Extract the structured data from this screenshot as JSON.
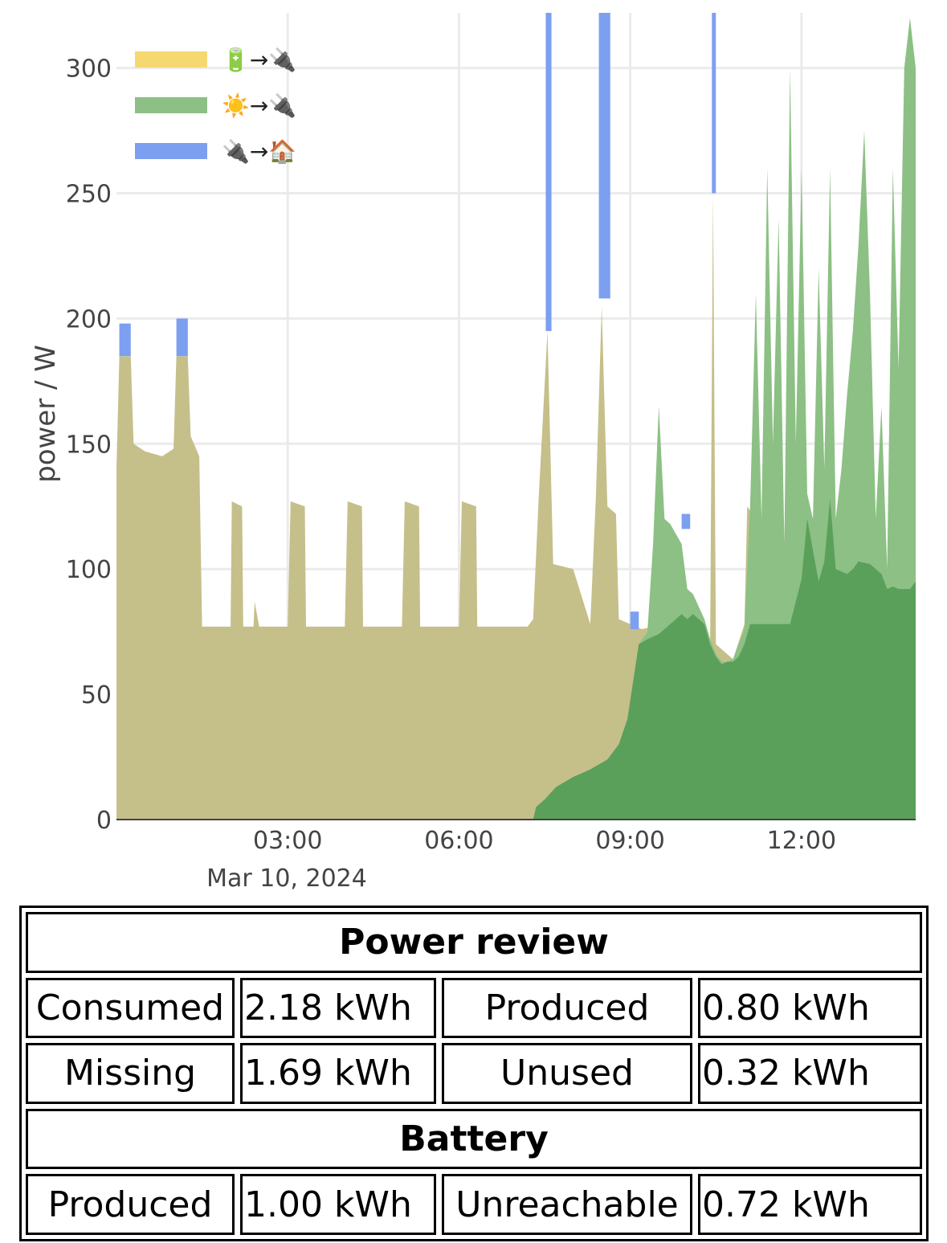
{
  "chart_data": {
    "type": "area",
    "xlabel": "",
    "ylabel": "power / W",
    "x_ticks": [
      "03:00",
      "06:00",
      "09:00",
      "12:00"
    ],
    "x_date_label": "Mar 10, 2024",
    "ylim": [
      0,
      322
    ],
    "y_ticks": [
      0,
      50,
      100,
      150,
      200,
      250,
      300
    ],
    "grid": true,
    "legend_position": "top-left",
    "x_unit": "hours since 00:00 on Mar 10, 2024",
    "series": [
      {
        "name": "☀️→🔌",
        "color": "#5aa05a",
        "points": [
          [
            0.0,
            0
          ],
          [
            7.3,
            0
          ],
          [
            7.35,
            5
          ],
          [
            7.5,
            8
          ],
          [
            7.7,
            13
          ],
          [
            8.0,
            17
          ],
          [
            8.3,
            20
          ],
          [
            8.6,
            24
          ],
          [
            8.8,
            30
          ],
          [
            8.95,
            40
          ],
          [
            9.05,
            55
          ],
          [
            9.15,
            70
          ],
          [
            9.3,
            72
          ],
          [
            9.5,
            74
          ],
          [
            9.6,
            76
          ],
          [
            9.8,
            80
          ],
          [
            9.9,
            82
          ],
          [
            10.0,
            80
          ],
          [
            10.1,
            82
          ],
          [
            10.3,
            78
          ],
          [
            10.4,
            70
          ],
          [
            10.5,
            65
          ],
          [
            10.6,
            62
          ],
          [
            10.7,
            63
          ],
          [
            10.8,
            63
          ],
          [
            10.9,
            65
          ],
          [
            11.0,
            70
          ],
          [
            11.1,
            78
          ],
          [
            11.2,
            78
          ],
          [
            11.5,
            78
          ],
          [
            11.8,
            78
          ],
          [
            12.0,
            96
          ],
          [
            12.1,
            120
          ],
          [
            12.3,
            95
          ],
          [
            12.4,
            103
          ],
          [
            12.5,
            128
          ],
          [
            12.6,
            100
          ],
          [
            12.8,
            98
          ],
          [
            12.9,
            100
          ],
          [
            13.0,
            103
          ],
          [
            13.2,
            102
          ],
          [
            13.3,
            100
          ],
          [
            13.4,
            98
          ],
          [
            13.5,
            92
          ],
          [
            13.6,
            93
          ],
          [
            13.7,
            92
          ],
          [
            13.8,
            92
          ],
          [
            13.9,
            92
          ],
          [
            14.0,
            95
          ]
        ]
      },
      {
        "name": "☀️→🔌",
        "color": "#8cc084",
        "points": [
          [
            0.0,
            0
          ],
          [
            7.3,
            0
          ],
          [
            7.35,
            5
          ],
          [
            7.5,
            8
          ],
          [
            7.7,
            13
          ],
          [
            8.0,
            17
          ],
          [
            8.3,
            20
          ],
          [
            8.6,
            24
          ],
          [
            8.8,
            30
          ],
          [
            8.95,
            40
          ],
          [
            9.05,
            55
          ],
          [
            9.15,
            70
          ],
          [
            9.3,
            75
          ],
          [
            9.4,
            110
          ],
          [
            9.5,
            165
          ],
          [
            9.6,
            120
          ],
          [
            9.7,
            118
          ],
          [
            9.8,
            114
          ],
          [
            9.9,
            110
          ],
          [
            10.0,
            92
          ],
          [
            10.1,
            90
          ],
          [
            10.3,
            80
          ],
          [
            10.4,
            72
          ],
          [
            10.5,
            66
          ],
          [
            10.6,
            63
          ],
          [
            10.7,
            63
          ],
          [
            10.8,
            64
          ],
          [
            10.9,
            70
          ],
          [
            11.0,
            76
          ],
          [
            11.1,
            125
          ],
          [
            11.2,
            210
          ],
          [
            11.3,
            120
          ],
          [
            11.4,
            260
          ],
          [
            11.5,
            150
          ],
          [
            11.6,
            240
          ],
          [
            11.7,
            110
          ],
          [
            11.8,
            300
          ],
          [
            11.9,
            150
          ],
          [
            12.0,
            260
          ],
          [
            12.1,
            130
          ],
          [
            12.2,
            120
          ],
          [
            12.3,
            220
          ],
          [
            12.4,
            140
          ],
          [
            12.5,
            260
          ],
          [
            12.6,
            120
          ],
          [
            12.7,
            140
          ],
          [
            12.8,
            170
          ],
          [
            12.9,
            195
          ],
          [
            13.0,
            230
          ],
          [
            13.1,
            275
          ],
          [
            13.2,
            210
          ],
          [
            13.3,
            120
          ],
          [
            13.4,
            165
          ],
          [
            13.5,
            100
          ],
          [
            13.6,
            260
          ],
          [
            13.7,
            180
          ],
          [
            13.8,
            300
          ],
          [
            13.9,
            320
          ],
          [
            14.0,
            300
          ]
        ]
      },
      {
        "name": "🔋→🔌",
        "color": "#c5bf8a",
        "points": [
          [
            0.0,
            140
          ],
          [
            0.05,
            185
          ],
          [
            0.25,
            185
          ],
          [
            0.3,
            150
          ],
          [
            0.5,
            147
          ],
          [
            0.8,
            145
          ],
          [
            1.0,
            148
          ],
          [
            1.05,
            185
          ],
          [
            1.25,
            185
          ],
          [
            1.3,
            153
          ],
          [
            1.45,
            145
          ],
          [
            1.5,
            77
          ],
          [
            2.0,
            77
          ],
          [
            2.02,
            127
          ],
          [
            2.2,
            125
          ],
          [
            2.22,
            77
          ],
          [
            2.4,
            77
          ],
          [
            2.42,
            87
          ],
          [
            2.5,
            77
          ],
          [
            3.0,
            77
          ],
          [
            3.05,
            127
          ],
          [
            3.3,
            125
          ],
          [
            3.32,
            77
          ],
          [
            4.0,
            77
          ],
          [
            4.05,
            127
          ],
          [
            4.3,
            125
          ],
          [
            4.32,
            77
          ],
          [
            5.0,
            77
          ],
          [
            5.05,
            127
          ],
          [
            5.3,
            125
          ],
          [
            5.32,
            77
          ],
          [
            6.0,
            77
          ],
          [
            6.05,
            127
          ],
          [
            6.3,
            125
          ],
          [
            6.32,
            77
          ],
          [
            7.2,
            77
          ],
          [
            7.3,
            80
          ],
          [
            7.4,
            130
          ],
          [
            7.55,
            195
          ],
          [
            7.65,
            102
          ],
          [
            8.0,
            100
          ],
          [
            8.3,
            78
          ],
          [
            8.4,
            130
          ],
          [
            8.5,
            205
          ],
          [
            8.6,
            125
          ],
          [
            8.75,
            122
          ],
          [
            8.8,
            80
          ],
          [
            9.0,
            78
          ],
          [
            9.2,
            76
          ],
          [
            10.0,
            80
          ],
          [
            10.3,
            76
          ],
          [
            10.4,
            70
          ],
          [
            10.45,
            250
          ],
          [
            10.5,
            70
          ],
          [
            10.8,
            64
          ],
          [
            11.0,
            78
          ],
          [
            11.05,
            125
          ],
          [
            11.2,
            120
          ],
          [
            11.3,
            80
          ],
          [
            14.0,
            80
          ]
        ]
      },
      {
        "name": "🔌→🏠",
        "color": "#7c9ff0",
        "points": [
          [
            0.05,
            198
          ],
          [
            0.25,
            198
          ],
          [
            1.05,
            200
          ],
          [
            1.25,
            200
          ],
          [
            7.5,
            322
          ],
          [
            7.6,
            322
          ],
          [
            8.45,
            322
          ],
          [
            8.7,
            322
          ],
          [
            10.45,
            322
          ],
          [
            9.0,
            83
          ],
          [
            10.0,
            122
          ]
        ]
      }
    ]
  },
  "table": {
    "title": "Power review",
    "rows": [
      [
        "Consumed",
        "2.18 kWh",
        "Produced",
        "0.80 kWh"
      ],
      [
        "Missing",
        "1.69 kWh",
        "Unused",
        "0.32 kWh"
      ]
    ],
    "battery_title": "Battery",
    "battery_row": [
      "Produced",
      "1.00 kWh",
      "Unreachable",
      "0.72 kWh"
    ]
  },
  "legend": [
    {
      "label": "🔋→🔌",
      "color": "#f5d970"
    },
    {
      "label": "☀️→🔌",
      "color": "#8cc084"
    },
    {
      "label": "🔌→🏠",
      "color": "#7c9ff0"
    }
  ]
}
